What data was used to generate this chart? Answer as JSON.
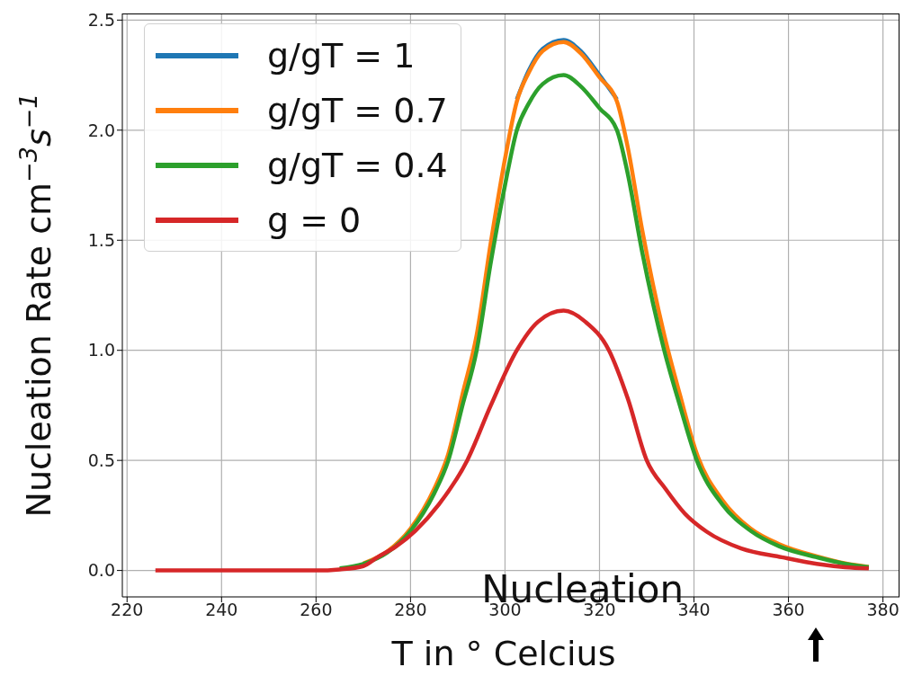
{
  "chart_data": {
    "type": "line",
    "xlabel": "T in ° Celcius",
    "ylabel": "Nucleation Rate cm$^{−3}$s$^{−1}$",
    "xlim": [
      219,
      383.5
    ],
    "xticks": [
      220,
      240,
      260,
      280,
      300,
      320,
      340,
      360,
      380
    ],
    "ylim": [
      -0.12,
      2.53
    ],
    "yticks": [
      {
        "value": 0,
        "label": "0.0"
      },
      {
        "value": 0.5,
        "label": "0.5"
      },
      {
        "value": 1,
        "label": "1.0"
      },
      {
        "value": 1.5,
        "label": "1.5"
      },
      {
        "value": 2,
        "label": "2.0"
      },
      {
        "value": 2.5,
        "label": "2.5"
      }
    ],
    "grid": true,
    "legend": "top left",
    "marker": "none",
    "line_style": "solid",
    "annotations": [
      "Nucleation"
    ],
    "series": [
      {
        "name": "g/gT = 1",
        "color": "#1f77b4",
        "x": [
          302.5,
          305,
          308,
          312.4,
          316,
          320,
          323.7
        ],
        "values": [
          2.14,
          2.27,
          2.37,
          2.41,
          2.36,
          2.25,
          2.14
        ]
      },
      {
        "name": "g/gT = 0.7",
        "color": "#ff7f0e",
        "x": [
          270,
          275,
          280,
          285,
          288,
          291,
          294,
          297,
          300,
          302.5,
          305,
          308,
          312.4,
          316,
          320,
          323.7,
          326,
          329,
          333.7,
          337,
          340.6,
          346,
          352,
          358,
          366,
          372,
          377
        ],
        "values": [
          0.032,
          0.085,
          0.19,
          0.37,
          0.53,
          0.8,
          1.07,
          1.49,
          1.87,
          2.13,
          2.26,
          2.36,
          2.4,
          2.35,
          2.24,
          2.13,
          1.92,
          1.55,
          1.07,
          0.8,
          0.53,
          0.32,
          0.19,
          0.12,
          0.064,
          0.032,
          0.016
        ]
      },
      {
        "name": "g/gT = 0.4",
        "color": "#2ca02c",
        "x": [
          265,
          270,
          275,
          280,
          285,
          288,
          291,
          294,
          297,
          300,
          302.5,
          305,
          308,
          312.4,
          316,
          320,
          323.7,
          326,
          329,
          333.7,
          337,
          340.6,
          346,
          352,
          358,
          366,
          372,
          377
        ],
        "values": [
          0.01,
          0.03,
          0.08,
          0.18,
          0.35,
          0.5,
          0.75,
          1.0,
          1.4,
          1.75,
          2.0,
          2.12,
          2.21,
          2.25,
          2.2,
          2.1,
          2.0,
          1.8,
          1.45,
          1.0,
          0.75,
          0.5,
          0.3,
          0.18,
          0.11,
          0.06,
          0.03,
          0.015
        ]
      },
      {
        "name": "g = 0",
        "color": "#d62728",
        "x": [
          226,
          240,
          250,
          260,
          265,
          270,
          273,
          277,
          281,
          286,
          292,
          297,
          302.5,
          307,
          312.4,
          317,
          322,
          326,
          330,
          334,
          338,
          342.7,
          350,
          358.6,
          366,
          372,
          377
        ],
        "values": [
          0,
          0,
          0,
          0,
          0.005,
          0.02,
          0.06,
          0.11,
          0.18,
          0.3,
          0.5,
          0.75,
          1.0,
          1.13,
          1.18,
          1.13,
          1.0,
          0.78,
          0.5,
          0.37,
          0.26,
          0.176,
          0.1,
          0.06,
          0.03,
          0.015,
          0.01
        ]
      }
    ]
  }
}
